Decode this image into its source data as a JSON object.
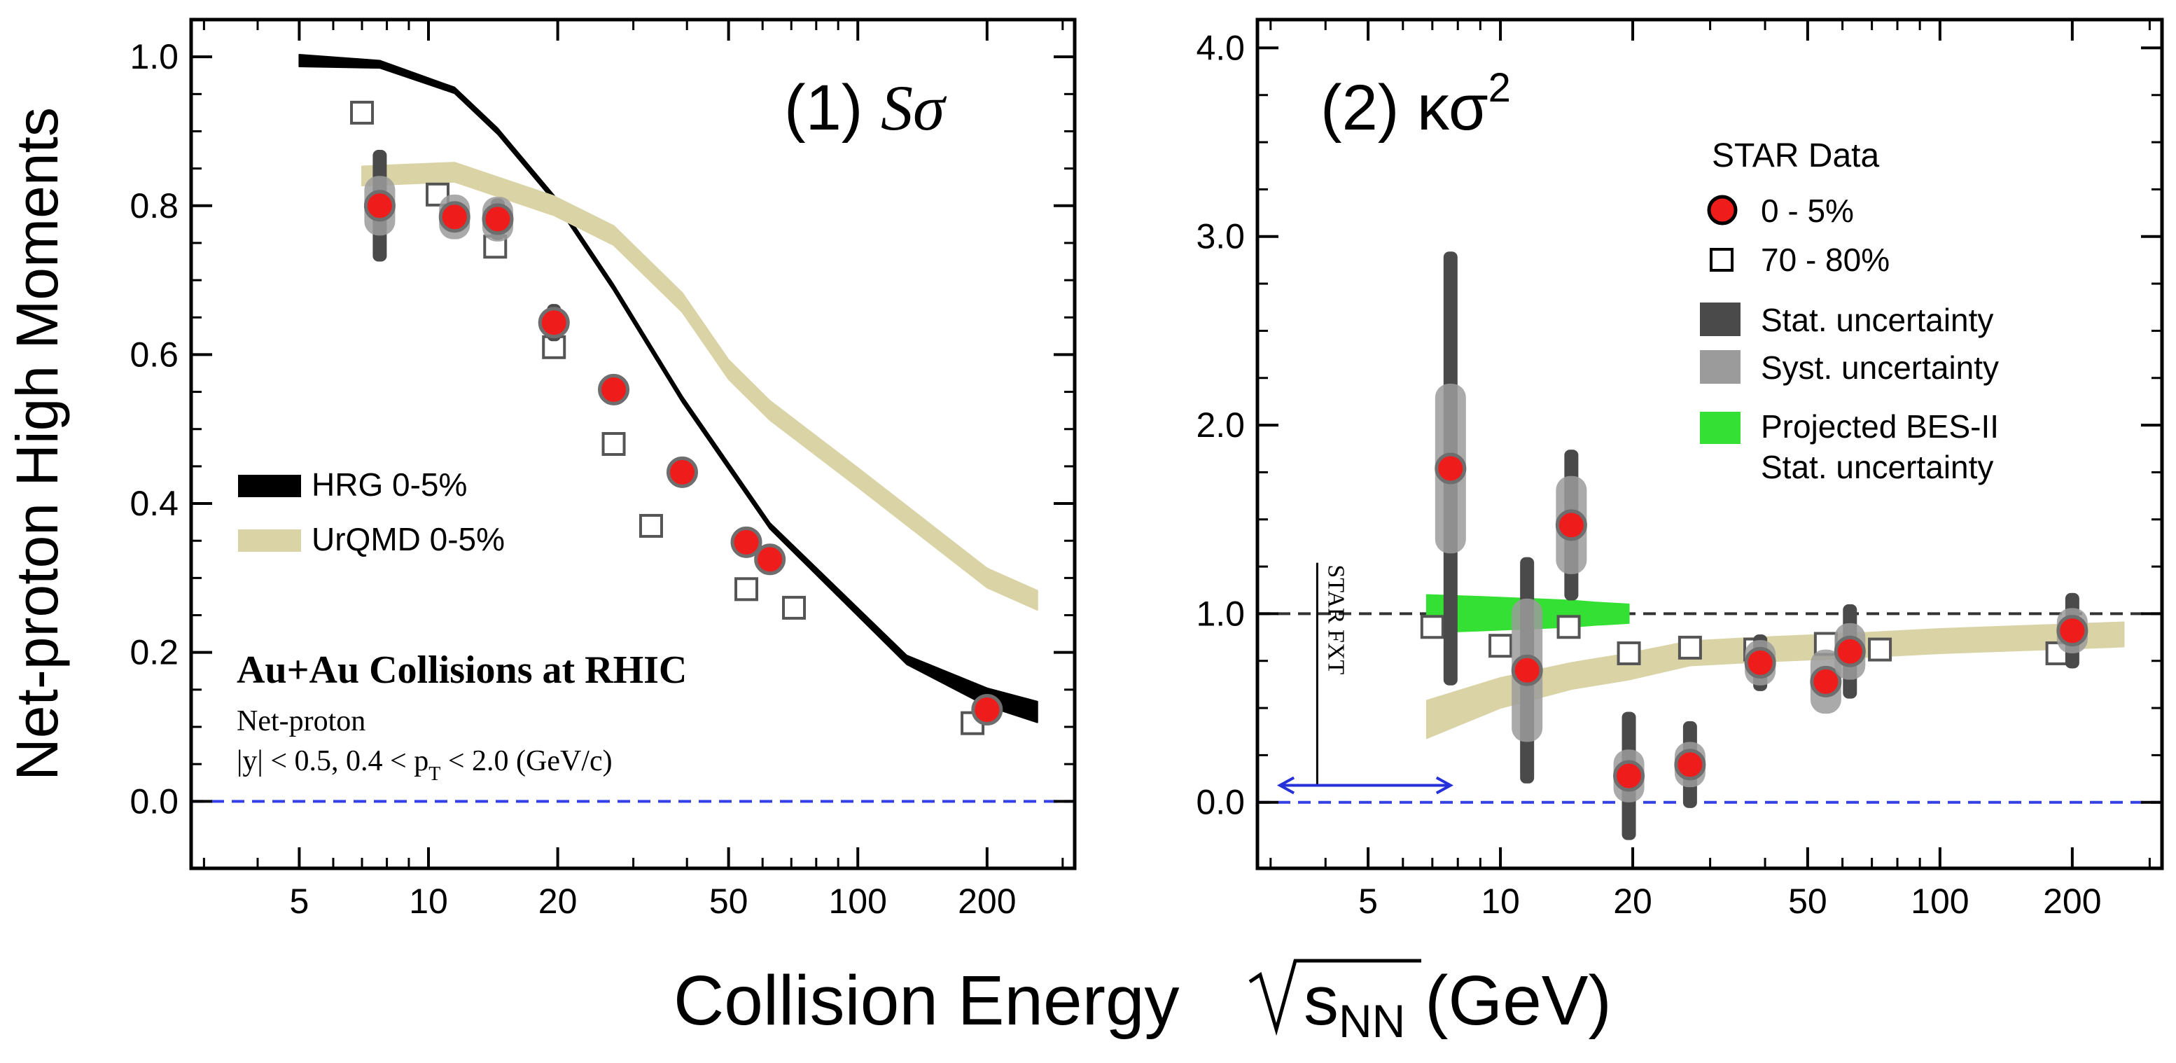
{
  "figure": {
    "ylabel": "Net-proton High Moments",
    "xlabel": {
      "main": "Collision Energy ",
      "sqrt_s": "s",
      "sub": "NN",
      "unit": " (GeV)"
    }
  },
  "chart_data": [
    {
      "type": "scatter",
      "panel_label": {
        "num": "(1) ",
        "sym": "Sσ"
      },
      "xscale": "log",
      "xlim": [
        2.8,
        320
      ],
      "ylim": [
        -0.09,
        1.05
      ],
      "xticks": [
        5,
        10,
        20,
        50,
        100,
        200
      ],
      "yticks": [
        0.0,
        0.2,
        0.4,
        0.6,
        0.8,
        1.0
      ],
      "ytick_labels": [
        "0.0",
        "0.2",
        "0.4",
        "0.6",
        "0.8",
        "1.0"
      ],
      "reference_line": {
        "y": 0,
        "color": "#3340e8",
        "style": "dashed"
      },
      "series": [
        {
          "name": "HRG 0-5%",
          "kind": "band",
          "color": "#000000",
          "x": [
            5,
            7.7,
            11.5,
            14.5,
            19.6,
            27,
            39,
            62.4,
            130,
            200,
            262
          ],
          "y": [
            0.995,
            0.99,
            0.955,
            0.9,
            0.81,
            0.69,
            0.54,
            0.37,
            0.19,
            0.14,
            0.12
          ],
          "halfwidth": [
            0.008,
            0.005,
            0.004,
            0.004,
            0.004,
            0.004,
            0.004,
            0.004,
            0.006,
            0.012,
            0.014
          ]
        },
        {
          "name": "UrQMD 0-5%",
          "kind": "band",
          "color": "#d9d3a6",
          "x": [
            7,
            11.5,
            19.6,
            27,
            39,
            50,
            62.4,
            100,
            200,
            262
          ],
          "y": [
            0.84,
            0.845,
            0.8,
            0.76,
            0.67,
            0.58,
            0.525,
            0.435,
            0.3,
            0.27
          ],
          "halfwidth": [
            0.013,
            0.013,
            0.013,
            0.013,
            0.013,
            0.013,
            0.013,
            0.013,
            0.013,
            0.013
          ]
        },
        {
          "name": "70-80%",
          "kind": "open-square",
          "x": [
            7,
            10.5,
            14.3,
            19.6,
            27,
            33,
            55,
            71,
            185
          ],
          "y": [
            0.925,
            0.815,
            0.745,
            0.61,
            0.48,
            0.37,
            0.285,
            0.26,
            0.105
          ]
        },
        {
          "name": "0-5%",
          "kind": "red-dot",
          "x": [
            7.7,
            11.5,
            14.5,
            19.6,
            27,
            39,
            55,
            62.4,
            200
          ],
          "y": [
            0.8,
            0.785,
            0.782,
            0.643,
            0.553,
            0.442,
            0.348,
            0.325,
            0.123
          ],
          "stat": [
            0.075,
            0.02,
            0.028,
            0.025,
            0.01,
            0.01,
            0.01,
            0.01,
            0.008
          ],
          "syst": [
            0.04,
            0.03,
            0.03,
            0.018,
            0.012,
            0.012,
            0.012,
            0.012,
            0.01
          ]
        }
      ],
      "legend": [
        "HRG 0-5%",
        "UrQMD 0-5%"
      ],
      "annotation": {
        "title": "Au+Au Collisions at RHIC",
        "line1": "Net-proton",
        "line2a": "|y| < 0.5,  0.4 < p",
        "line2b": "T",
        "line2c": " < 2.0 (GeV/c)"
      }
    },
    {
      "type": "scatter",
      "panel_label": {
        "num": "(2) ",
        "sym": "κσ",
        "sup": "2"
      },
      "xscale": "log",
      "xlim": [
        2.8,
        320
      ],
      "ylim": [
        -0.35,
        4.15
      ],
      "xticks": [
        5,
        10,
        20,
        50,
        100,
        200
      ],
      "yticks": [
        0,
        1,
        2,
        3,
        4
      ],
      "ytick_labels": [
        "0.0",
        "1.0",
        "2.0",
        "3.0",
        "4.0"
      ],
      "reference_lines": [
        {
          "y": 0,
          "color": "#3340e8",
          "style": "dashed"
        },
        {
          "y": 1,
          "color": "#333333",
          "style": "dashed"
        }
      ],
      "series": [
        {
          "name": "UrQMD",
          "kind": "band",
          "color": "#d9d3a6",
          "x": [
            6.8,
            10,
            14.5,
            19.6,
            27,
            39,
            62.4,
            100,
            200,
            262
          ],
          "y": [
            0.44,
            0.58,
            0.67,
            0.72,
            0.79,
            0.81,
            0.83,
            0.855,
            0.88,
            0.89
          ],
          "halfwidth": [
            0.1,
            0.08,
            0.07,
            0.07,
            0.065,
            0.065,
            0.065,
            0.065,
            0.065,
            0.065
          ]
        },
        {
          "name": "Projected BES-II Stat. uncertainty",
          "kind": "band",
          "color": "#33e033",
          "x": [
            6.8,
            9,
            11.5,
            14.5,
            16.5,
            19.6
          ],
          "y": [
            1.0,
            1.0,
            1.0,
            1.0,
            1.0,
            1.0
          ],
          "halfwidth": [
            0.1,
            0.09,
            0.08,
            0.07,
            0.06,
            0.05
          ]
        },
        {
          "name": "70 - 80%",
          "kind": "open-square",
          "x": [
            7,
            10,
            14.3,
            19.6,
            27,
            38,
            55,
            73,
            185
          ],
          "y": [
            0.93,
            0.83,
            0.93,
            0.79,
            0.82,
            0.81,
            0.84,
            0.81,
            0.79
          ]
        },
        {
          "name": "0 - 5%",
          "kind": "red-dot",
          "x": [
            7.7,
            11.5,
            14.5,
            19.6,
            27,
            39,
            55,
            62.4,
            200
          ],
          "y": [
            1.77,
            0.7,
            1.47,
            0.14,
            0.2,
            0.74,
            0.64,
            0.8,
            0.91
          ],
          "stat": [
            1.15,
            0.6,
            0.4,
            0.34,
            0.23,
            0.15,
            0.08,
            0.25,
            0.2
          ],
          "syst": [
            0.45,
            0.38,
            0.26,
            0.14,
            0.12,
            0.12,
            0.17,
            0.15,
            0.12
          ]
        }
      ],
      "legend": {
        "title": "STAR Data",
        "items": [
          "0 - 5%",
          "70 - 80%",
          "Stat. uncertainty",
          "Syst. uncertainty",
          "Projected BES-II",
          "Stat. uncertainty"
        ]
      },
      "annotation": {
        "fxt": "STAR FXT",
        "fxt_x": 3.83,
        "arrow_from": 3.15,
        "arrow_to": 7.7
      }
    }
  ]
}
